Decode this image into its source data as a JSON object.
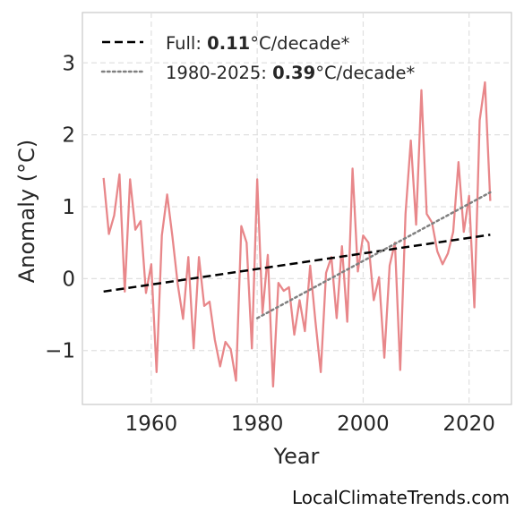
{
  "chart_data": {
    "type": "line",
    "xlabel": "Year",
    "ylabel": "Anomaly (°C)",
    "xlim": [
      1947,
      2028
    ],
    "ylim": [
      -1.75,
      3.7
    ],
    "xticks": [
      1960,
      1980,
      2000,
      2020
    ],
    "yticks": [
      -1,
      0,
      1,
      2,
      3
    ],
    "ytick_labels": [
      "−1",
      "0",
      "1",
      "2",
      "3"
    ],
    "grid": true,
    "legend_position": "top-left",
    "series": [
      {
        "kind": "observed",
        "color": "#e8878a",
        "x": [
          1951,
          1952,
          1953,
          1954,
          1955,
          1956,
          1957,
          1958,
          1959,
          1960,
          1961,
          1962,
          1963,
          1964,
          1965,
          1966,
          1967,
          1968,
          1969,
          1970,
          1971,
          1972,
          1973,
          1974,
          1975,
          1976,
          1977,
          1978,
          1979,
          1980,
          1981,
          1982,
          1983,
          1984,
          1985,
          1986,
          1987,
          1988,
          1989,
          1990,
          1991,
          1992,
          1993,
          1994,
          1995,
          1996,
          1997,
          1998,
          1999,
          2000,
          2001,
          2002,
          2003,
          2004,
          2005,
          2006,
          2007,
          2008,
          2009,
          2010,
          2011,
          2012,
          2013,
          2014,
          2015,
          2016,
          2017,
          2018,
          2019,
          2020,
          2021,
          2022,
          2023,
          2024
        ],
        "y": [
          1.4,
          0.62,
          0.88,
          1.45,
          -0.18,
          1.38,
          0.68,
          0.8,
          -0.2,
          0.2,
          -1.3,
          0.6,
          1.17,
          0.58,
          -0.08,
          -0.56,
          0.3,
          -0.97,
          0.3,
          -0.38,
          -0.32,
          -0.85,
          -1.22,
          -0.88,
          -0.98,
          -1.42,
          0.73,
          0.5,
          -0.97,
          1.38,
          -0.48,
          0.33,
          -1.5,
          -0.06,
          -0.17,
          -0.12,
          -0.78,
          -0.3,
          -0.73,
          0.18,
          -0.6,
          -1.3,
          0.08,
          0.3,
          -0.55,
          0.45,
          -0.6,
          1.53,
          0.1,
          0.6,
          0.5,
          -0.3,
          0.02,
          -1.1,
          0.18,
          0.5,
          -1.27,
          0.9,
          1.92,
          0.75,
          2.62,
          0.9,
          0.78,
          0.38,
          0.2,
          0.35,
          0.65,
          1.62,
          0.65,
          1.15,
          -0.4,
          2.2,
          2.73,
          1.08
        ]
      },
      {
        "kind": "full-trend",
        "color": "#000000",
        "dash": "dashed",
        "x": [
          1951,
          2024
        ],
        "y": [
          -0.18,
          0.61
        ]
      },
      {
        "kind": "recent-trend",
        "color": "#808080",
        "dash": "dotted",
        "x": [
          1980,
          2024
        ],
        "y": [
          -0.55,
          1.2
        ]
      }
    ],
    "legend": [
      {
        "prefix": "Full: ",
        "value": "0.11",
        "suffix": "°C/decade*",
        "color": "#000000",
        "dash": "dashed"
      },
      {
        "prefix": "1980-2025: ",
        "value": "0.39",
        "suffix": "°C/decade*",
        "color": "#808080",
        "dash": "dotted"
      }
    ]
  },
  "watermark": "LocalClimateTrends.com"
}
